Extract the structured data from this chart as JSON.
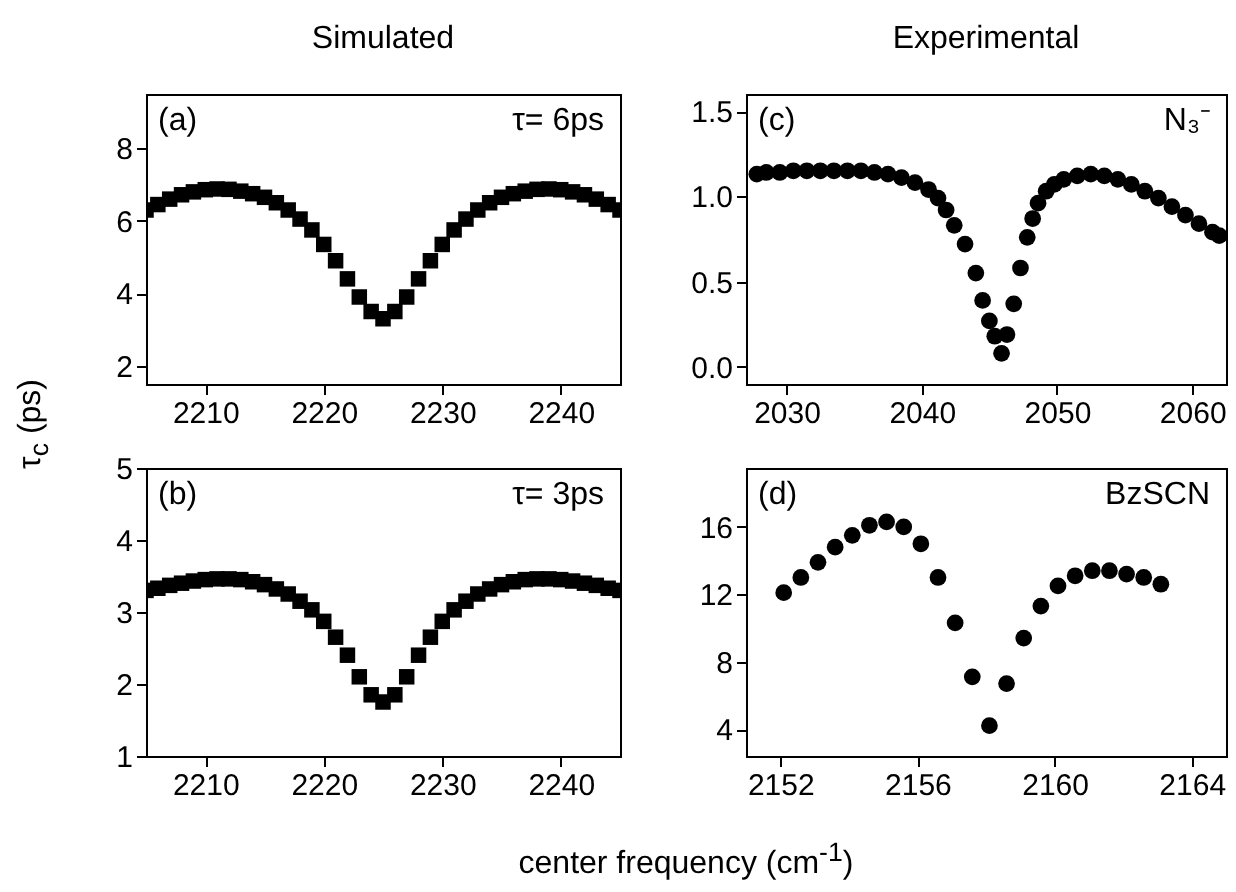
{
  "chart_data": [
    {
      "type": "scatter",
      "title": "Simulated",
      "ylabel": "τ$_{c}$ (ps)",
      "marker": "square",
      "color": "#000000",
      "annotations": [
        "(a)",
        "τ= 6ps"
      ],
      "xlim": [
        2205,
        2245
      ],
      "xticks": [
        2210,
        2220,
        2230,
        2240
      ],
      "ylim": [
        1.5,
        9.5
      ],
      "yticks": [
        2,
        4,
        6,
        8
      ],
      "x": [
        2205,
        2206,
        2207,
        2208,
        2209,
        2210,
        2211,
        2212,
        2213,
        2214,
        2215,
        2216,
        2217,
        2218,
        2219,
        2220,
        2221,
        2222,
        2223,
        2224,
        2225,
        2226,
        2227,
        2228,
        2229,
        2230,
        2231,
        2232,
        2233,
        2234,
        2235,
        2236,
        2237,
        2238,
        2239,
        2240,
        2241,
        2242,
        2243,
        2244,
        2245
      ],
      "values": [
        6.3,
        6.45,
        6.6,
        6.72,
        6.8,
        6.86,
        6.88,
        6.87,
        6.82,
        6.75,
        6.65,
        6.5,
        6.3,
        6.05,
        5.75,
        5.35,
        4.9,
        4.4,
        3.9,
        3.5,
        3.3,
        3.5,
        3.9,
        4.4,
        4.9,
        5.35,
        5.75,
        6.05,
        6.3,
        6.5,
        6.65,
        6.75,
        6.82,
        6.87,
        6.88,
        6.86,
        6.8,
        6.72,
        6.6,
        6.45,
        6.3
      ]
    },
    {
      "type": "scatter",
      "marker": "square",
      "color": "#000000",
      "annotations": [
        "(b)",
        "τ= 3ps"
      ],
      "xlim": [
        2205,
        2245
      ],
      "xticks": [
        2210,
        2220,
        2230,
        2240
      ],
      "ylim": [
        1,
        5
      ],
      "yticks": [
        1,
        2,
        3,
        4,
        5
      ],
      "x": [
        2205,
        2206,
        2207,
        2208,
        2209,
        2210,
        2211,
        2212,
        2213,
        2214,
        2215,
        2216,
        2217,
        2218,
        2219,
        2220,
        2221,
        2222,
        2223,
        2224,
        2225,
        2226,
        2227,
        2228,
        2229,
        2230,
        2231,
        2232,
        2233,
        2234,
        2235,
        2236,
        2237,
        2238,
        2239,
        2240,
        2241,
        2242,
        2243,
        2244,
        2245
      ],
      "values": [
        3.3,
        3.33,
        3.37,
        3.4,
        3.43,
        3.45,
        3.46,
        3.46,
        3.45,
        3.42,
        3.38,
        3.32,
        3.25,
        3.15,
        3.03,
        2.87,
        2.65,
        2.4,
        2.1,
        1.85,
        1.75,
        1.85,
        2.1,
        2.4,
        2.65,
        2.87,
        3.03,
        3.15,
        3.25,
        3.32,
        3.38,
        3.42,
        3.45,
        3.46,
        3.46,
        3.45,
        3.43,
        3.4,
        3.37,
        3.33,
        3.3
      ]
    },
    {
      "type": "scatter",
      "title": "Experimental",
      "marker": "circle",
      "color": "#000000",
      "annotations": [
        "(c)",
        "N₃⁻"
      ],
      "xlim": [
        2027,
        2062.5
      ],
      "xticks": [
        2030,
        2040,
        2050,
        2060
      ],
      "ylim": [
        -0.1,
        1.6
      ],
      "yticks": [
        {
          "value": 0,
          "label": "0.0"
        },
        0.5,
        {
          "value": 1,
          "label": "1.0"
        },
        1.5
      ],
      "x": [
        2027.8,
        2028.5,
        2029.5,
        2030.5,
        2031.5,
        2032.5,
        2033.5,
        2034.5,
        2035.5,
        2036.5,
        2037.5,
        2038.5,
        2039.5,
        2040.5,
        2041.2,
        2041.8,
        2042.4,
        2043.2,
        2044.0,
        2044.5,
        2045.0,
        2045.4,
        2045.9,
        2046.3,
        2046.8,
        2047.3,
        2047.8,
        2048.2,
        2048.6,
        2049.2,
        2049.8,
        2050.5,
        2051.5,
        2052.5,
        2053.5,
        2054.5,
        2055.5,
        2056.5,
        2057.5,
        2058.5,
        2059.5,
        2060.5,
        2061.5,
        2062.0
      ],
      "values": [
        1.13,
        1.14,
        1.14,
        1.15,
        1.15,
        1.15,
        1.15,
        1.15,
        1.15,
        1.14,
        1.13,
        1.11,
        1.08,
        1.04,
        0.99,
        0.92,
        0.83,
        0.72,
        0.55,
        0.39,
        0.27,
        0.18,
        0.08,
        0.19,
        0.37,
        0.58,
        0.76,
        0.87,
        0.96,
        1.03,
        1.07,
        1.1,
        1.12,
        1.13,
        1.12,
        1.1,
        1.07,
        1.03,
        0.99,
        0.94,
        0.89,
        0.84,
        0.79,
        0.77
      ]
    },
    {
      "type": "scatter",
      "xlabel": "center frequency (cm$^{-1}$)",
      "marker": "circle",
      "color": "#000000",
      "annotations": [
        "(d)",
        "BzSCN"
      ],
      "xlim": [
        2151,
        2165
      ],
      "xticks": [
        2152,
        2156,
        2160,
        2164
      ],
      "ylim": [
        2.4,
        19.5
      ],
      "yticks": [
        4,
        8,
        12,
        16
      ],
      "x": [
        2152.1,
        2152.6,
        2153.1,
        2153.6,
        2154.1,
        2154.6,
        2155.1,
        2155.6,
        2156.1,
        2156.6,
        2157.1,
        2157.6,
        2158.1,
        2158.6,
        2159.1,
        2159.6,
        2160.1,
        2160.6,
        2161.1,
        2161.6,
        2162.1,
        2162.6,
        2163.1
      ],
      "values": [
        12.1,
        13.0,
        13.9,
        14.8,
        15.5,
        16.1,
        16.3,
        16.0,
        15.0,
        13.0,
        10.3,
        7.1,
        4.2,
        6.7,
        9.4,
        11.3,
        12.5,
        13.1,
        13.4,
        13.4,
        13.2,
        13.0,
        12.6
      ]
    }
  ]
}
